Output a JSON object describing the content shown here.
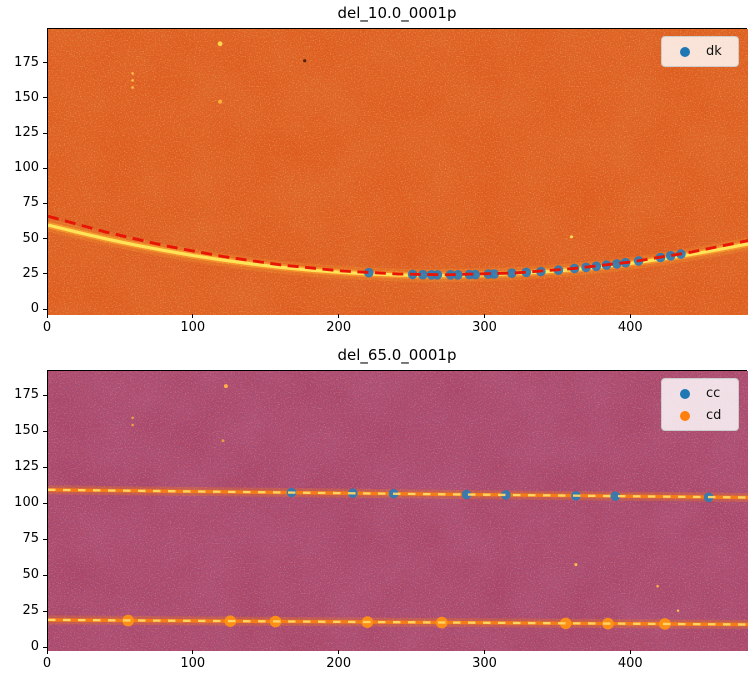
{
  "figure": {
    "background": "#ffffff"
  },
  "chart_data": [
    {
      "type": "scatter",
      "title": "del_10.0_0001p",
      "xlabel": "",
      "ylabel": "",
      "xlim": [
        0,
        480
      ],
      "ylim": [
        -3.5,
        199.5
      ],
      "xticks": [
        0,
        100,
        200,
        300,
        400
      ],
      "yticks": [
        0,
        25,
        50,
        75,
        100,
        125,
        150,
        175
      ],
      "grid": false,
      "legend": {
        "position": "upper right",
        "entries": [
          {
            "label": "dk",
            "color": "#1f77b4"
          }
        ]
      },
      "background": {
        "style": "heatmap image with speckle noise",
        "base": "#e05b1e",
        "noise_dark": "#7a2606",
        "noise_light": "#ff9a45",
        "mottle": "#c74a12"
      },
      "image_ridge": {
        "name": "bright-trace",
        "color_core": "#ffe358",
        "color_glow": "#ffae30",
        "points": [
          [
            0,
            60.4
          ],
          [
            20,
            55.3
          ],
          [
            40,
            50.5
          ],
          [
            60,
            46.1
          ],
          [
            80,
            42.2
          ],
          [
            100,
            38.6
          ],
          [
            120,
            35.5
          ],
          [
            140,
            32.7
          ],
          [
            160,
            30.3
          ],
          [
            180,
            28.4
          ],
          [
            200,
            26.8
          ],
          [
            220,
            25.7
          ],
          [
            240,
            24.9
          ],
          [
            260,
            24.5
          ],
          [
            280,
            24.6
          ],
          [
            300,
            25.0
          ],
          [
            320,
            25.9
          ],
          [
            340,
            27.1
          ],
          [
            360,
            28.7
          ],
          [
            380,
            30.8
          ],
          [
            400,
            33.2
          ],
          [
            420,
            36.1
          ],
          [
            440,
            39.3
          ],
          [
            460,
            42.9
          ],
          [
            480,
            47.0
          ]
        ]
      },
      "fit_curve": {
        "name": "parabola-fit",
        "style": "dashed",
        "color": "#e81405",
        "points": [
          [
            0,
            66.6
          ],
          [
            40,
            55.3
          ],
          [
            80,
            45.7
          ],
          [
            120,
            38.0
          ],
          [
            160,
            32.0
          ],
          [
            200,
            27.9
          ],
          [
            240,
            25.6
          ],
          [
            272,
            25.0
          ],
          [
            320,
            26.3
          ],
          [
            360,
            29.4
          ],
          [
            400,
            34.2
          ],
          [
            440,
            40.9
          ],
          [
            480,
            49.3
          ]
        ]
      },
      "series": [
        {
          "name": "dk",
          "color": "#2f7ab5",
          "marker": "circle",
          "points": [
            [
              220,
              26.5
            ],
            [
              250,
              25.3
            ],
            [
              257,
              25.1
            ],
            [
              263,
              25.0
            ],
            [
              267,
              25.0
            ],
            [
              276,
              25.0
            ],
            [
              281,
              25.0
            ],
            [
              289,
              25.2
            ],
            [
              293,
              25.2
            ],
            [
              302,
              25.5
            ],
            [
              306,
              25.6
            ],
            [
              318,
              26.2
            ],
            [
              328,
              26.8
            ],
            [
              338,
              27.4
            ],
            [
              350,
              28.4
            ],
            [
              361,
              29.5
            ],
            [
              369,
              30.3
            ],
            [
              376,
              31.1
            ],
            [
              383,
              31.9
            ],
            [
              390,
              32.8
            ],
            [
              396,
              33.6
            ],
            [
              405,
              34.9
            ],
            [
              420,
              37.3
            ],
            [
              427,
              38.5
            ],
            [
              434,
              39.7
            ]
          ]
        }
      ],
      "artifacts": [
        {
          "x": 118,
          "y": 189,
          "color": "#ffd54f",
          "r": 2.4
        },
        {
          "x": 118,
          "y": 148,
          "color": "#ffb03a",
          "r": 2.0
        },
        {
          "x": 58,
          "y": 168,
          "color": "#ffc04a",
          "r": 1.3
        },
        {
          "x": 58,
          "y": 163,
          "color": "#ffc04a",
          "r": 1.3
        },
        {
          "x": 58,
          "y": 158,
          "color": "#ffc04a",
          "r": 1.3
        },
        {
          "x": 176,
          "y": 177,
          "color": "#55200e",
          "r": 1.6
        },
        {
          "x": 359,
          "y": 52,
          "color": "#ffd54f",
          "r": 1.6
        }
      ]
    },
    {
      "type": "scatter",
      "title": "del_65.0_0001p",
      "xlabel": "",
      "ylabel": "",
      "xlim": [
        0,
        480
      ],
      "ylim": [
        -2,
        192.5
      ],
      "xticks": [
        0,
        100,
        200,
        300,
        400
      ],
      "yticks": [
        0,
        25,
        50,
        75,
        100,
        125,
        150,
        175
      ],
      "grid": false,
      "legend": {
        "position": "upper right",
        "entries": [
          {
            "label": "cc",
            "color": "#1f77b4"
          },
          {
            "label": "cd",
            "color": "#ff7f0e"
          }
        ]
      },
      "background": {
        "style": "heatmap image with speckle noise",
        "base": "#ad4566",
        "noise_dark": "#241a4d",
        "noise_light": "#d4627c",
        "mottle": "#93355a"
      },
      "image_ridges": [
        {
          "name": "upper-trace",
          "color_core": "#f57d17",
          "color_dash": "#ffd96a",
          "points": [
            [
              0,
              110.0
            ],
            [
              240,
              107.2
            ],
            [
              480,
              104.6
            ]
          ]
        },
        {
          "name": "lower-trace",
          "color_core": "#f57d17",
          "color_dash": "#ffd96a",
          "points": [
            [
              0,
              19.6
            ],
            [
              240,
              18.0
            ],
            [
              480,
              16.4
            ]
          ]
        }
      ],
      "series": [
        {
          "name": "cc",
          "color": "#2f7ab5",
          "marker": "circle",
          "points": [
            [
              167,
              108.1
            ],
            [
              209,
              107.6
            ],
            [
              237,
              107.3
            ],
            [
              287,
              106.7
            ],
            [
              314,
              106.4
            ],
            [
              362,
              105.8
            ],
            [
              389,
              105.5
            ],
            [
              453,
              104.8
            ]
          ]
        },
        {
          "name": "cd",
          "color": "#ff9214",
          "marker": "circle",
          "points": [
            [
              55,
              19.1
            ],
            [
              125,
              18.7
            ],
            [
              156,
              18.5
            ],
            [
              219,
              18.1
            ],
            [
              270,
              17.7
            ],
            [
              355,
              17.2
            ],
            [
              384,
              17.0
            ],
            [
              423,
              16.8
            ]
          ]
        }
      ],
      "artifacts": [
        {
          "x": 122,
          "y": 182,
          "color": "#ffae4a",
          "r": 2.0
        },
        {
          "x": 58,
          "y": 160,
          "color": "#e8a04a",
          "r": 1.3
        },
        {
          "x": 58,
          "y": 155,
          "color": "#e8a04a",
          "r": 1.3
        },
        {
          "x": 120,
          "y": 144,
          "color": "#e89a45",
          "r": 1.5
        },
        {
          "x": 362,
          "y": 58,
          "color": "#ffc04a",
          "r": 1.5
        },
        {
          "x": 418,
          "y": 43,
          "color": "#ffae4a",
          "r": 1.3
        },
        {
          "x": 432,
          "y": 26,
          "color": "#ffc95e",
          "r": 1.2
        }
      ]
    }
  ]
}
